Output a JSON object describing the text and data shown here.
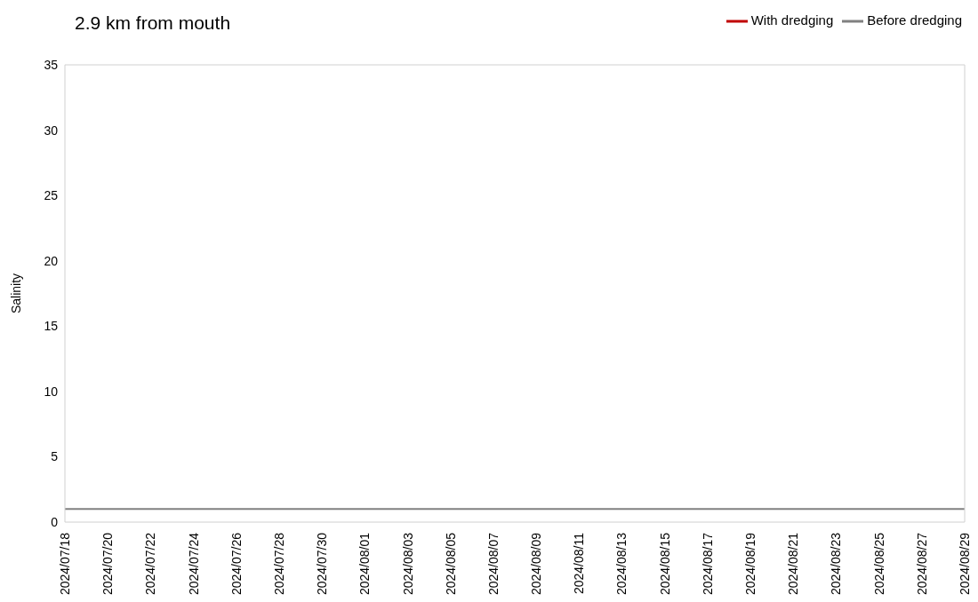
{
  "chart_data": {
    "type": "line",
    "title": "2.9 km from mouth",
    "ylabel": "Salinity",
    "x": [
      "2024-07-18",
      "2024-08-29"
    ],
    "series": [
      {
        "name": "With dredging",
        "color": "#c00000",
        "values": [
          null,
          null
        ]
      },
      {
        "name": "Before dredging",
        "color": "#808080",
        "values": [
          1,
          1
        ]
      }
    ],
    "xlim": [
      "2024-07-18",
      "2024-08-29"
    ],
    "xticks": [
      {
        "value": "2024-07-18",
        "label": "2024/07/18"
      },
      {
        "value": "2024-07-20",
        "label": "2024/07/20"
      },
      {
        "value": "2024-07-22",
        "label": "2024/07/22"
      },
      {
        "value": "2024-07-24",
        "label": "2024/07/24"
      },
      {
        "value": "2024-07-26",
        "label": "2024/07/26"
      },
      {
        "value": "2024-07-28",
        "label": "2024/07/28"
      },
      {
        "value": "2024-07-30",
        "label": "2024/07/30"
      },
      {
        "value": "2024-08-01",
        "label": "2024/08/01"
      },
      {
        "value": "2024-08-03",
        "label": "2024/08/03"
      },
      {
        "value": "2024-08-05",
        "label": "2024/08/05"
      },
      {
        "value": "2024-08-07",
        "label": "2024/08/07"
      },
      {
        "value": "2024-08-09",
        "label": "2024/08/09"
      },
      {
        "value": "2024-08-11",
        "label": "2024/08/11"
      },
      {
        "value": "2024-08-13",
        "label": "2024/08/13"
      },
      {
        "value": "2024-08-15",
        "label": "2024/08/15"
      },
      {
        "value": "2024-08-17",
        "label": "2024/08/17"
      },
      {
        "value": "2024-08-19",
        "label": "2024/08/19"
      },
      {
        "value": "2024-08-21",
        "label": "2024/08/21"
      },
      {
        "value": "2024-08-23",
        "label": "2024/08/23"
      },
      {
        "value": "2024-08-25",
        "label": "2024/08/25"
      },
      {
        "value": "2024-08-27",
        "label": "2024/08/27"
      },
      {
        "value": "2024-08-29",
        "label": "2024/08/29"
      }
    ],
    "ylim": [
      0,
      35
    ],
    "yticks": [
      0,
      5,
      10,
      15,
      20,
      25,
      30,
      35
    ],
    "legend": "top right",
    "marker": "none"
  }
}
